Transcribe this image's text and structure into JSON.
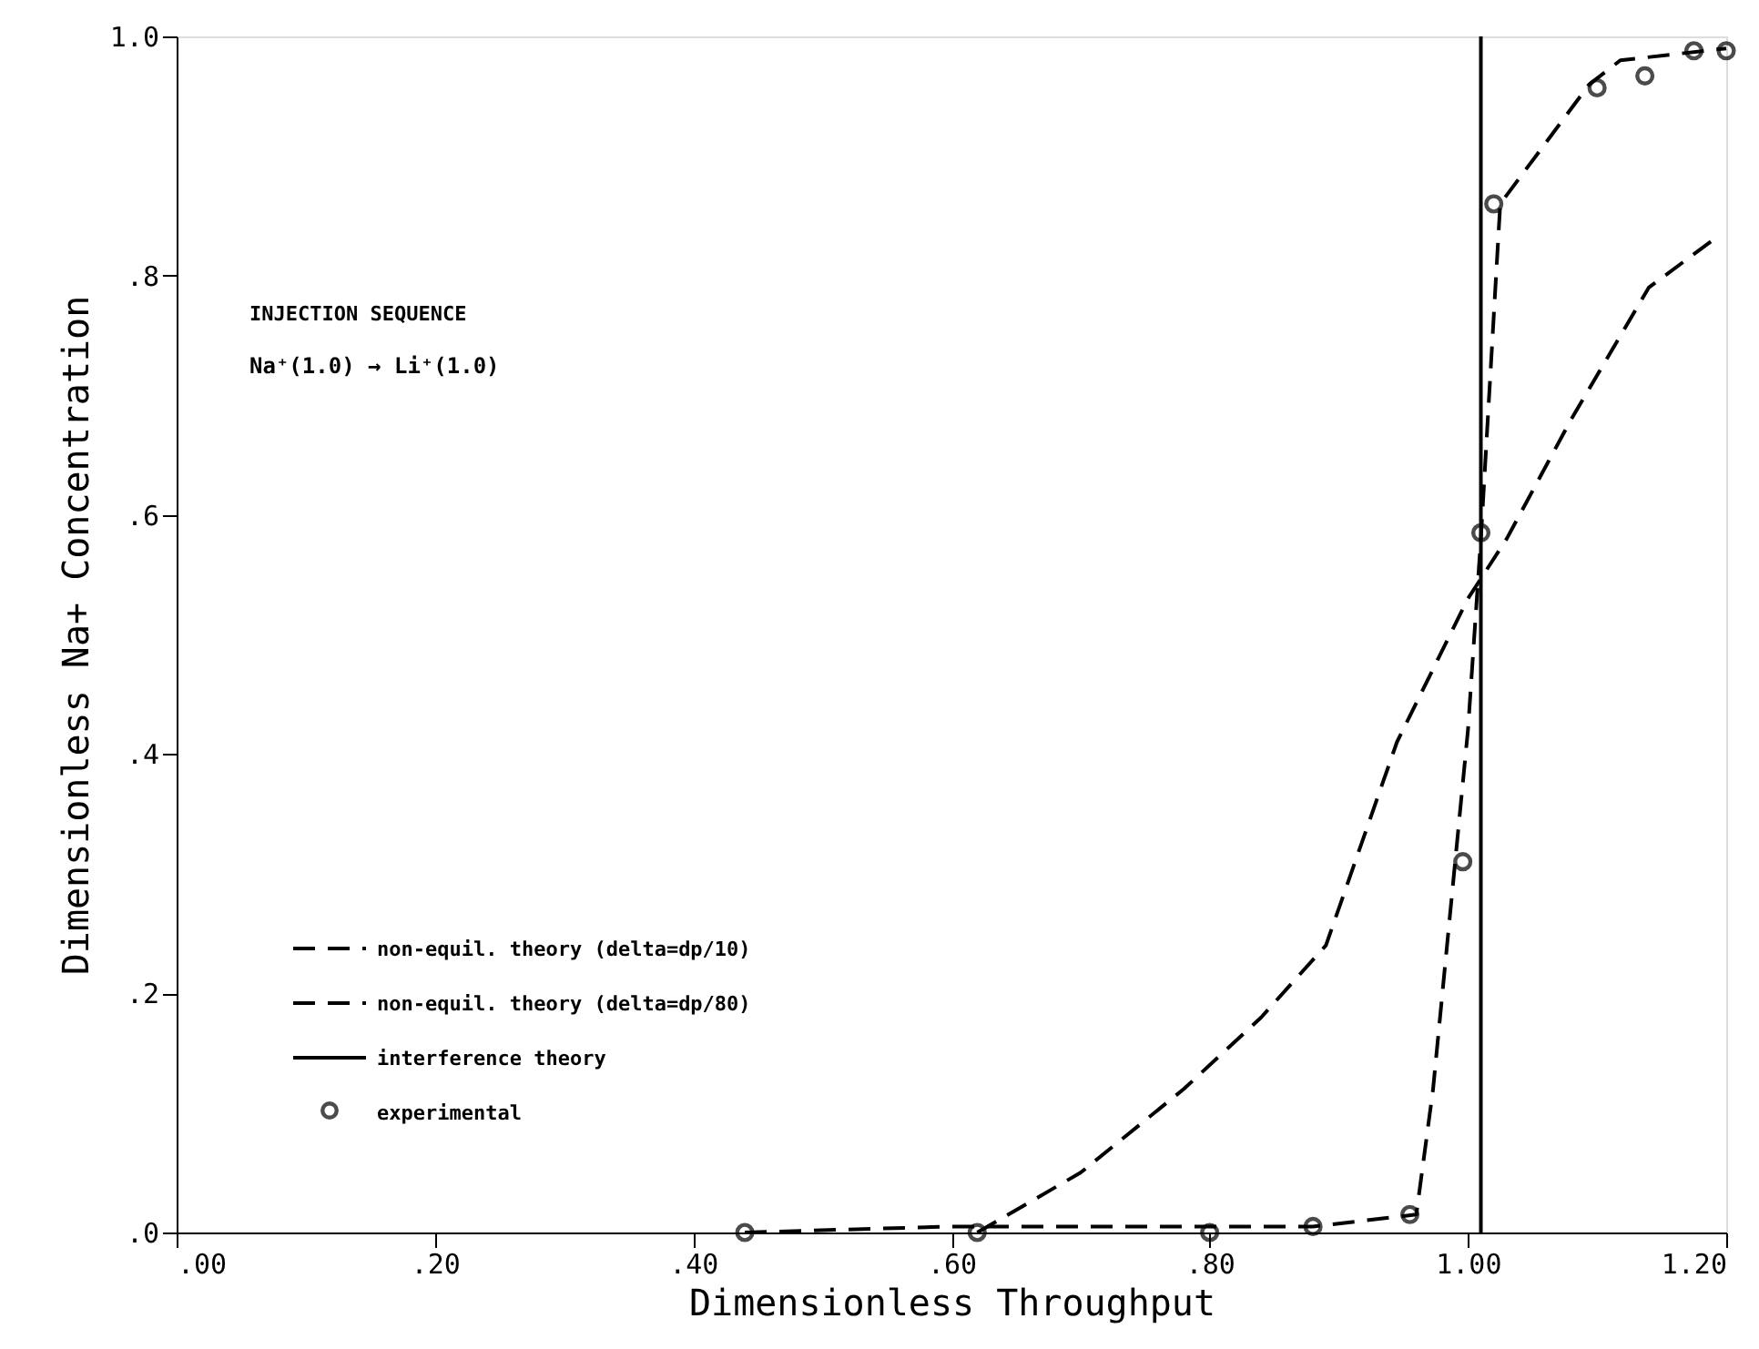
{
  "chart_data": {
    "type": "line",
    "xlabel": "Dimensionless Throughput",
    "ylabel": "Dimensionless Na+ Concentration",
    "annotations": [
      "INJECTION SEQUENCE",
      "Na⁺(1.0) → Li⁺(1.0)"
    ],
    "xlim": [
      0,
      1.2
    ],
    "ylim": [
      0,
      1.0
    ],
    "xticks": [
      {
        "value": 0,
        "label": ".00"
      },
      {
        "value": 0.2,
        "label": ".20"
      },
      {
        "value": 0.4,
        "label": ".40"
      },
      {
        "value": 0.6,
        "label": ".60"
      },
      {
        "value": 0.8,
        "label": ".80"
      },
      {
        "value": 1.0,
        "label": "1.00"
      },
      {
        "value": 1.2,
        "label": "1.20"
      }
    ],
    "yticks": [
      {
        "value": 0,
        "label": ".0"
      },
      {
        "value": 0.2,
        "label": ".2"
      },
      {
        "value": 0.4,
        "label": ".4"
      },
      {
        "value": 0.6,
        "label": ".6"
      },
      {
        "value": 0.8,
        "label": ".8"
      },
      {
        "value": 1.0,
        "label": "1.0"
      }
    ],
    "grid": false,
    "legend": "bottom left",
    "series": [
      {
        "name": "non-equil. theory (delta=dp/10)",
        "color": "#000000",
        "line_style": "dashed",
        "marker": "none",
        "x": [
          0.62,
          0.7,
          0.78,
          0.84,
          0.89,
          0.945,
          1.0,
          1.03,
          1.08,
          1.14,
          1.19
        ],
        "values": [
          0,
          0.05,
          0.12,
          0.18,
          0.24,
          0.41,
          0.53,
          0.58,
          0.68,
          0.79,
          0.83
        ]
      },
      {
        "name": "non-equil. theory (delta=dp/80)",
        "color": "#000000",
        "line_style": "dashed",
        "marker": "none",
        "x": [
          0.44,
          0.6,
          0.88,
          0.96,
          0.973,
          1.0,
          1.01,
          1.025,
          1.094,
          1.118,
          1.2
        ],
        "values": [
          0,
          0.005,
          0.005,
          0.015,
          0.12,
          0.42,
          0.58,
          0.86,
          0.96,
          0.98,
          0.99
        ]
      },
      {
        "name": "interference theory",
        "color": "#000000",
        "line_style": "solid",
        "marker": "none",
        "x": [
          1.01,
          1.01
        ],
        "values": [
          0,
          1.0
        ]
      },
      {
        "name": "experimental",
        "type": "scatter",
        "color": "#000000",
        "marker": "circle",
        "x": [
          0.44,
          0.62,
          0.8,
          0.88,
          0.955,
          0.996,
          1.01,
          1.02,
          1.1,
          1.137,
          1.175,
          1.2
        ],
        "values": [
          0,
          0,
          0,
          0.005,
          0.015,
          0.31,
          0.585,
          0.86,
          0.957,
          0.967,
          0.988,
          0.988
        ]
      }
    ]
  }
}
